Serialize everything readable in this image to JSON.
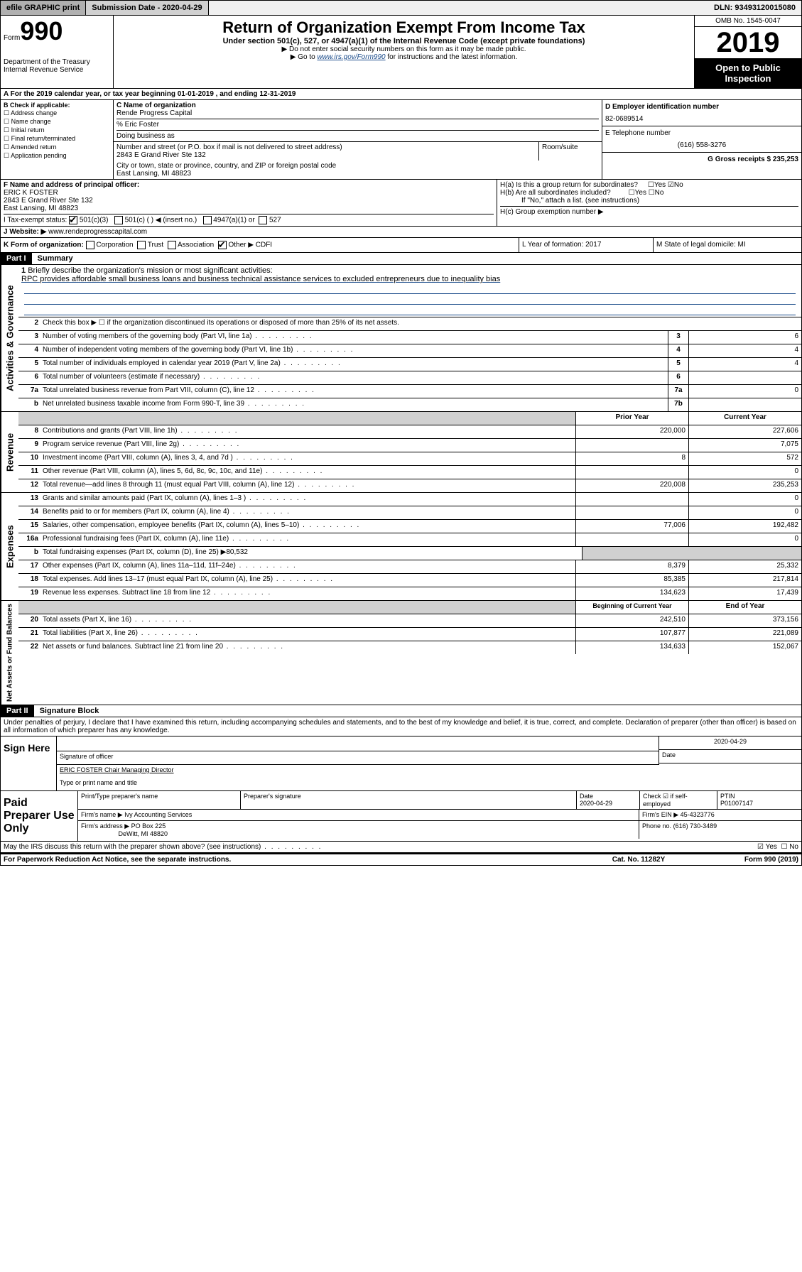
{
  "topbar": {
    "efile": "efile GRAPHIC print",
    "subdate_label": "Submission Date - 2020-04-29",
    "dln": "DLN: 93493120015080"
  },
  "header": {
    "form_prefix": "Form",
    "form_num": "990",
    "dept": "Department of the Treasury\nInternal Revenue Service",
    "title": "Return of Organization Exempt From Income Tax",
    "sub": "Under section 501(c), 527, or 4947(a)(1) of the Internal Revenue Code (except private foundations)",
    "note1": "▶ Do not enter social security numbers on this form as it may be made public.",
    "note2_pre": "▶ Go to ",
    "note2_link": "www.irs.gov/Form990",
    "note2_post": " for instructions and the latest information.",
    "omb": "OMB No. 1545-0047",
    "year": "2019",
    "open": "Open to Public Inspection"
  },
  "rowA": "A For the 2019 calendar year, or tax year beginning 01-01-2019   , and ending 12-31-2019",
  "colB": {
    "header": "B Check if applicable:",
    "items": [
      "Address change",
      "Name change",
      "Initial return",
      "Final return/terminated",
      "Amended return",
      "Application pending"
    ]
  },
  "colC": {
    "name_label": "C Name of organization",
    "name": "Rende Progress Capital",
    "care_of": "% Eric Foster",
    "dba_label": "Doing business as",
    "dba": "",
    "addr_label": "Number and street (or P.O. box if mail is not delivered to street address)",
    "room_label": "Room/suite",
    "addr": "2843 E Grand River Ste 132",
    "city_label": "City or town, state or province, country, and ZIP or foreign postal code",
    "city": "East Lansing, MI  48823"
  },
  "colD": {
    "ein_label": "D Employer identification number",
    "ein": "82-0689514",
    "phone_label": "E Telephone number",
    "phone": "(616) 558-3276",
    "gross_label": "G Gross receipts $ 235,253"
  },
  "rowF": {
    "label": "F  Name and address of principal officer:",
    "name": "ERIC K FOSTER",
    "addr1": "2843 E Grand River Ste 132",
    "addr2": "East Lansing, MI  48823"
  },
  "rowH": {
    "ha": "H(a)  Is this a group return for subordinates?",
    "hb": "H(b)  Are all subordinates included?",
    "hb_note": "If \"No,\" attach a list. (see instructions)",
    "hc": "H(c)  Group exemption number ▶"
  },
  "rowI": {
    "label": "I     Tax-exempt status:",
    "opts": [
      "501(c)(3)",
      "501(c) (  ) ◀ (insert no.)",
      "4947(a)(1) or",
      "527"
    ]
  },
  "rowJ": {
    "label": "J     Website: ▶",
    "val": "www.rendeprogresscapital.com"
  },
  "rowK": {
    "label": "K Form of organization:",
    "opts": [
      "Corporation",
      "Trust",
      "Association",
      "Other ▶"
    ],
    "other_val": "CDFI"
  },
  "rowL": {
    "label": "L Year of formation: 2017"
  },
  "rowM": {
    "label": "M State of legal domicile: MI"
  },
  "part1": {
    "header": "Part I",
    "title": "Summary"
  },
  "activities": {
    "label": "Activities & Governance",
    "row1": {
      "num": "1",
      "desc": "Briefly describe the organization's mission or most significant activities:",
      "text": "RPC provides affordable small business loans and business technical assistance services to excluded entrepreneurs due to inequality bias"
    },
    "row2": {
      "num": "2",
      "desc": "Check this box ▶ ☐  if the organization discontinued its operations or disposed of more than 25% of its net assets."
    },
    "row3": {
      "num": "3",
      "desc": "Number of voting members of the governing body (Part VI, line 1a)",
      "sn": "3",
      "val": "6"
    },
    "row4": {
      "num": "4",
      "desc": "Number of independent voting members of the governing body (Part VI, line 1b)",
      "sn": "4",
      "val": "4"
    },
    "row5": {
      "num": "5",
      "desc": "Total number of individuals employed in calendar year 2019 (Part V, line 2a)",
      "sn": "5",
      "val": "4"
    },
    "row6": {
      "num": "6",
      "desc": "Total number of volunteers (estimate if necessary)",
      "sn": "6",
      "val": ""
    },
    "row7a": {
      "num": "7a",
      "desc": "Total unrelated business revenue from Part VIII, column (C), line 12",
      "sn": "7a",
      "val": "0"
    },
    "row7b": {
      "num": "b",
      "desc": "Net unrelated business taxable income from Form 990-T, line 39",
      "sn": "7b",
      "val": ""
    }
  },
  "revenue": {
    "label": "Revenue",
    "head_prior": "Prior Year",
    "head_curr": "Current Year",
    "rows": [
      {
        "num": "8",
        "desc": "Contributions and grants (Part VIII, line 1h)",
        "prior": "220,000",
        "curr": "227,606"
      },
      {
        "num": "9",
        "desc": "Program service revenue (Part VIII, line 2g)",
        "prior": "",
        "curr": "7,075"
      },
      {
        "num": "10",
        "desc": "Investment income (Part VIII, column (A), lines 3, 4, and 7d )",
        "prior": "8",
        "curr": "572"
      },
      {
        "num": "11",
        "desc": "Other revenue (Part VIII, column (A), lines 5, 6d, 8c, 9c, 10c, and 11e)",
        "prior": "",
        "curr": "0"
      },
      {
        "num": "12",
        "desc": "Total revenue—add lines 8 through 11 (must equal Part VIII, column (A), line 12)",
        "prior": "220,008",
        "curr": "235,253"
      }
    ]
  },
  "expenses": {
    "label": "Expenses",
    "rows": [
      {
        "num": "13",
        "desc": "Grants and similar amounts paid (Part IX, column (A), lines 1–3 )",
        "prior": "",
        "curr": "0"
      },
      {
        "num": "14",
        "desc": "Benefits paid to or for members (Part IX, column (A), line 4)",
        "prior": "",
        "curr": "0"
      },
      {
        "num": "15",
        "desc": "Salaries, other compensation, employee benefits (Part IX, column (A), lines 5–10)",
        "prior": "77,006",
        "curr": "192,482"
      },
      {
        "num": "16a",
        "desc": "Professional fundraising fees (Part IX, column (A), line 11e)",
        "prior": "",
        "curr": "0"
      },
      {
        "num": "b",
        "desc": "Total fundraising expenses (Part IX, column (D), line 25) ▶80,532",
        "prior": null,
        "curr": null
      },
      {
        "num": "17",
        "desc": "Other expenses (Part IX, column (A), lines 11a–11d, 11f–24e)",
        "prior": "8,379",
        "curr": "25,332"
      },
      {
        "num": "18",
        "desc": "Total expenses. Add lines 13–17 (must equal Part IX, column (A), line 25)",
        "prior": "85,385",
        "curr": "217,814"
      },
      {
        "num": "19",
        "desc": "Revenue less expenses. Subtract line 18 from line 12",
        "prior": "134,623",
        "curr": "17,439"
      }
    ]
  },
  "netassets": {
    "label": "Net Assets or Fund Balances",
    "head_prior": "Beginning of Current Year",
    "head_curr": "End of Year",
    "rows": [
      {
        "num": "20",
        "desc": "Total assets (Part X, line 16)",
        "prior": "242,510",
        "curr": "373,156"
      },
      {
        "num": "21",
        "desc": "Total liabilities (Part X, line 26)",
        "prior": "107,877",
        "curr": "221,089"
      },
      {
        "num": "22",
        "desc": "Net assets or fund balances. Subtract line 21 from line 20",
        "prior": "134,633",
        "curr": "152,067"
      }
    ]
  },
  "part2": {
    "header": "Part II",
    "title": "Signature Block"
  },
  "sig": {
    "declaration": "Under penalties of perjury, I declare that I have examined this return, including accompanying schedules and statements, and to the best of my knowledge and belief, it is true, correct, and complete. Declaration of preparer (other than officer) is based on all information of which preparer has any knowledge.",
    "sign_here": "Sign Here",
    "sig_officer": "Signature of officer",
    "date": "2020-04-29",
    "date_label": "Date",
    "name": "ERIC FOSTER Chair Managing Director",
    "name_label": "Type or print name and title"
  },
  "paid": {
    "label": "Paid Preparer Use Only",
    "h1": "Print/Type preparer's name",
    "h2": "Preparer's signature",
    "h3": "Date",
    "h3v": "2020-04-29",
    "h4": "Check ☑ if self-employed",
    "h5": "PTIN",
    "h5v": "P01007147",
    "firm_name_label": "Firm's name    ▶",
    "firm_name": "Ivy Accounting Services",
    "firm_ein_label": "Firm's EIN ▶",
    "firm_ein": "45-4323776",
    "firm_addr_label": "Firm's address ▶",
    "firm_addr1": "PO Box 225",
    "firm_addr2": "DeWitt, MI  48820",
    "phone_label": "Phone no.",
    "phone": "(616) 730-3489"
  },
  "footer": {
    "discuss": "May the IRS discuss this return with the preparer shown above? (see instructions)",
    "yes": "Yes",
    "no": "No",
    "paperwork": "For Paperwork Reduction Act Notice, see the separate instructions.",
    "cat": "Cat. No. 11282Y",
    "form": "Form 990 (2019)"
  }
}
